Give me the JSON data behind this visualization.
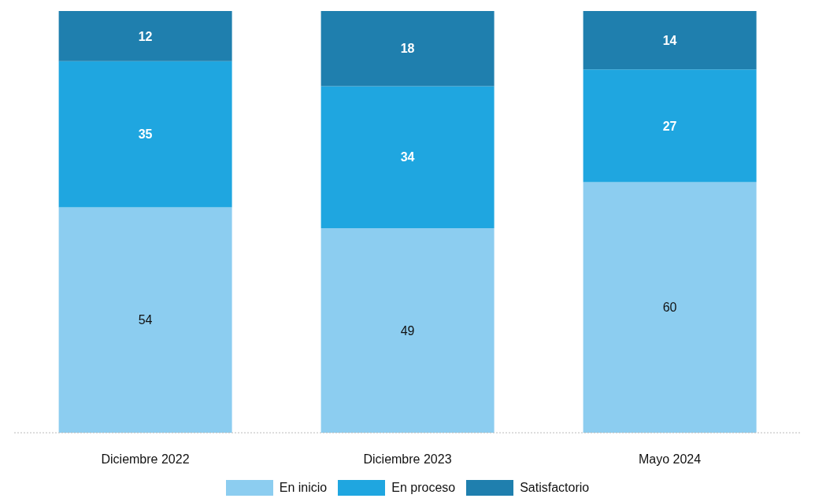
{
  "chart_data": {
    "type": "bar",
    "stacked": true,
    "categories": [
      "Diciembre 2022",
      "Diciembre 2023",
      "Mayo 2024"
    ],
    "series": [
      {
        "name": "En inicio",
        "color": "#8ccdf0",
        "values": [
          54,
          49,
          60
        ]
      },
      {
        "name": "En proceso",
        "color": "#1fa6e0",
        "values": [
          35,
          34,
          27
        ]
      },
      {
        "name": "Satisfactorio",
        "color": "#1f7fae",
        "values": [
          12,
          18,
          14
        ]
      }
    ],
    "data_labels": true,
    "legend": "bottom",
    "grid": false
  }
}
